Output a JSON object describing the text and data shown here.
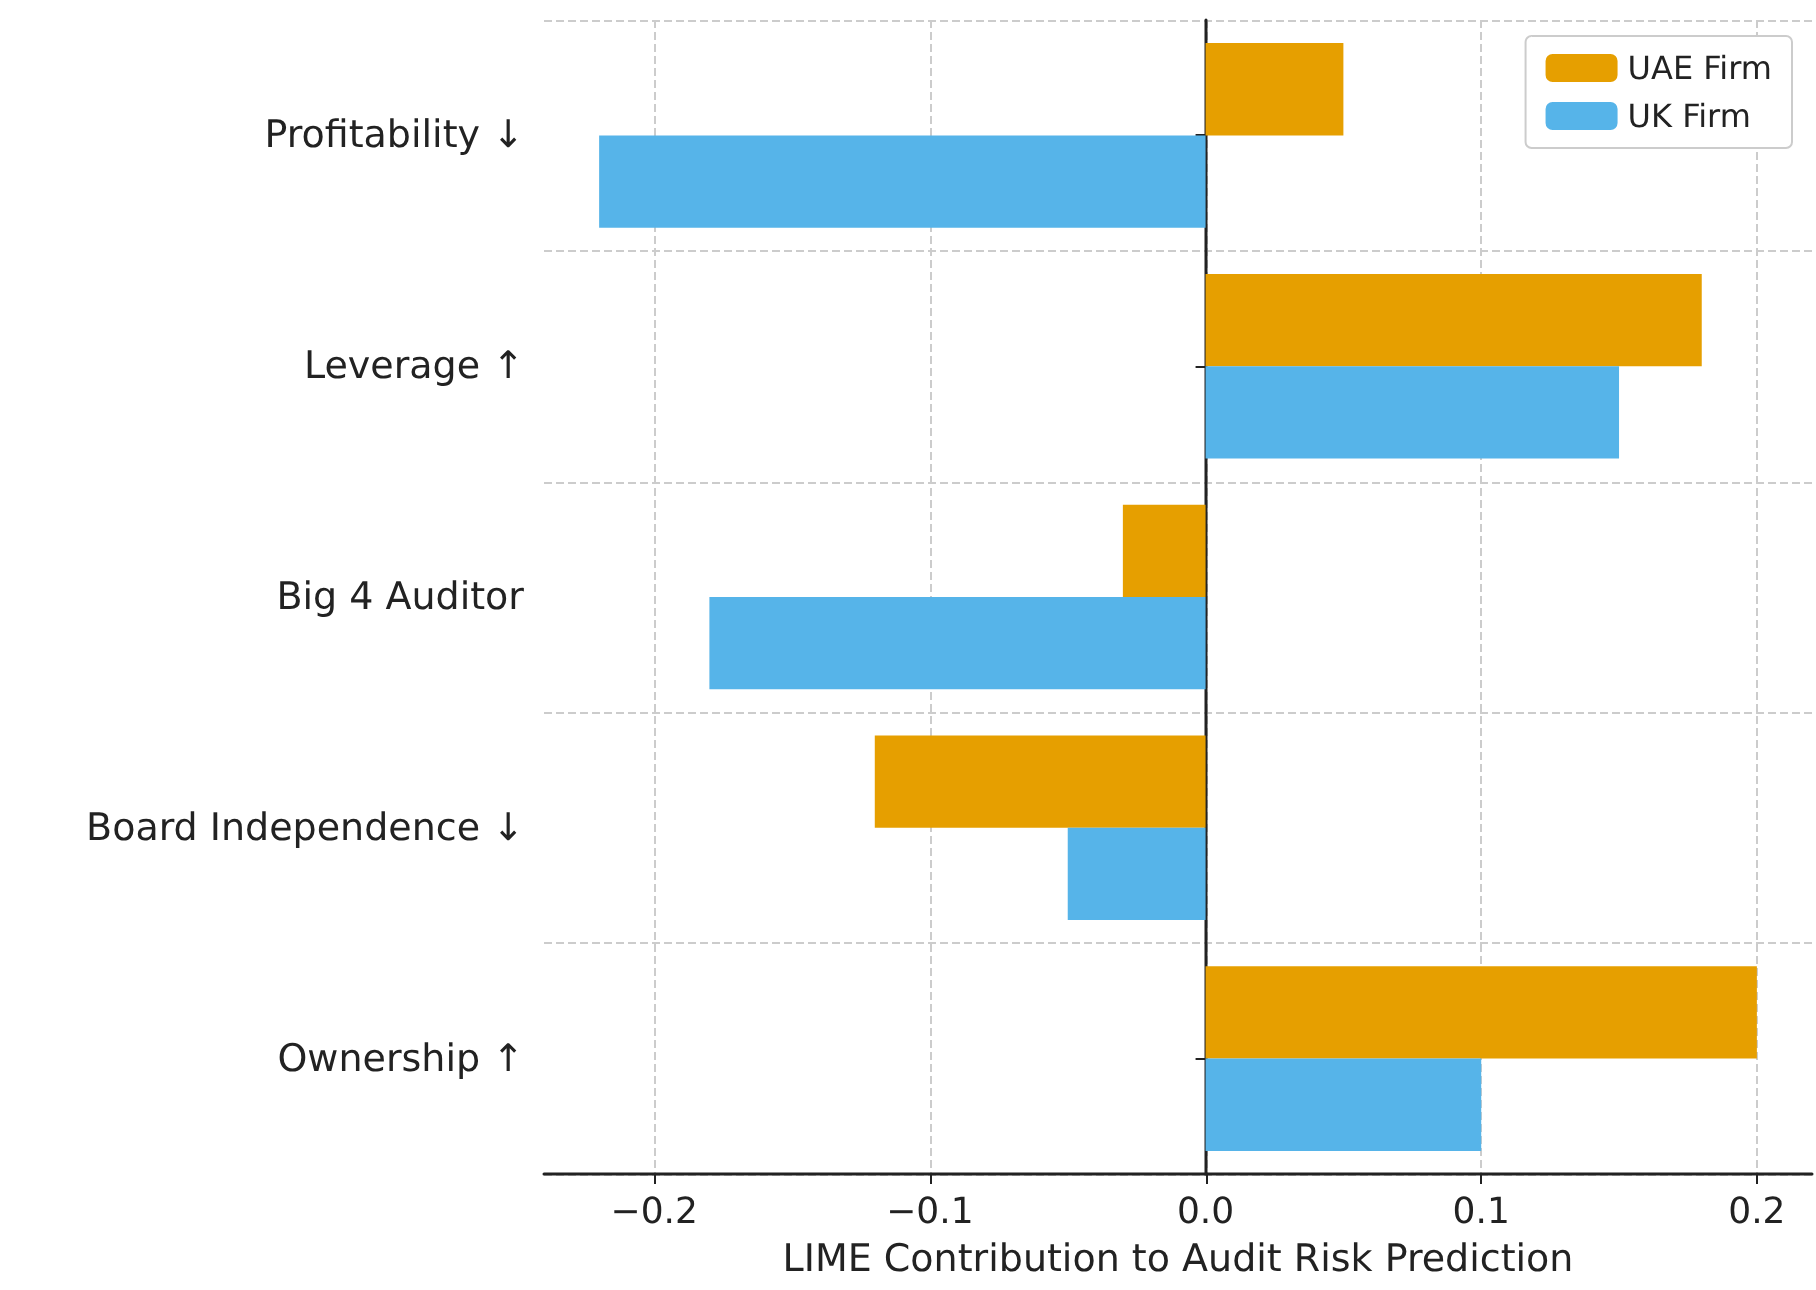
{
  "chart_data": {
    "type": "bar",
    "orientation": "horizontal",
    "xlabel": "LIME Contribution to Audit Risk Prediction",
    "categories": [
      "Profitability ↓",
      "Leverage ↑",
      "Big 4 Auditor",
      "Board Independence ↓",
      "Ownership ↑"
    ],
    "series": [
      {
        "name": "UAE Firm",
        "color": "#e69f00",
        "values": [
          0.05,
          0.18,
          -0.03,
          -0.12,
          0.2
        ]
      },
      {
        "name": "UK Firm",
        "color": "#56b4e9",
        "values": [
          -0.22,
          0.15,
          -0.18,
          -0.05,
          0.1
        ]
      }
    ],
    "xlim": [
      -0.24,
      0.22
    ],
    "xticks": [
      {
        "value": -0.2,
        "label": "−0.2"
      },
      {
        "value": -0.1,
        "label": "−0.1"
      },
      {
        "value": 0,
        "label": "0.0"
      },
      {
        "value": 0.1,
        "label": "0.1"
      },
      {
        "value": 0.2,
        "label": "0.2"
      }
    ],
    "grid": true,
    "legend": "top right"
  }
}
